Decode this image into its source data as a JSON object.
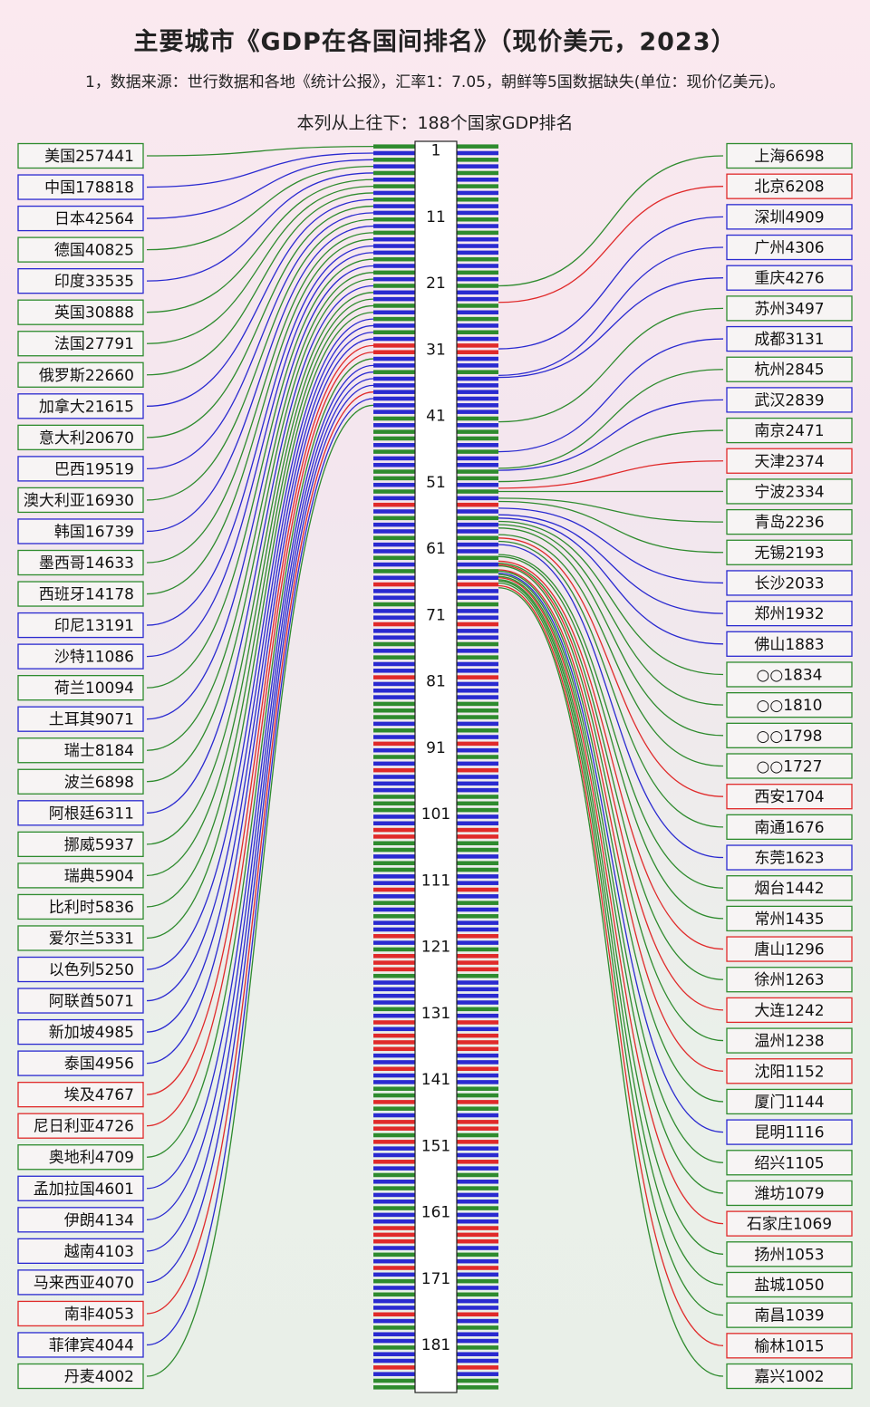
{
  "title": "主要城市《GDP在各国间排名》（现价美元，2023）",
  "note": "1，数据来源：世行数据和各地《统计公报》，汇率1：7.05，朝鲜等5国数据缺失(单位：现价亿美元)。",
  "axis_caption": "本列从上往下：188个国家GDP排名",
  "total_ranks": 188,
  "colors": {
    "green": "#2e8b2e",
    "blue": "#2a2ad0",
    "red": "#e02a2a"
  },
  "stripe_pattern": "gbgbgbgbgbbgbgbbbgbgbgbbgbgbgbrrbbgbbbbbbgbggbgbbggbgbrbgbbgbbgbgbrbbgbbrbbgbgbbrbbbgggbgbrbgbrbbbgggbbrrggbggbbrbgbgbbrbgrrrgbbbbgbrbrrrbbrbbggrgbrrgrbbrbgbgbbgbbrrrbgbrbgbgbbrbgbbgbbrbggggggggg",
  "rank_ticks": [
    1,
    11,
    21,
    31,
    41,
    51,
    61,
    71,
    81,
    91,
    101,
    111,
    121,
    131,
    141,
    151,
    161,
    171,
    181
  ],
  "countries": [
    {
      "label": "美国257441",
      "rank": 1,
      "color": "green"
    },
    {
      "label": "中国178818",
      "rank": 2,
      "color": "blue"
    },
    {
      "label": "日本42564",
      "rank": 3,
      "color": "blue"
    },
    {
      "label": "德国40825",
      "rank": 4,
      "color": "green"
    },
    {
      "label": "印度33535",
      "rank": 5,
      "color": "blue"
    },
    {
      "label": "英国30888",
      "rank": 6,
      "color": "green"
    },
    {
      "label": "法国27791",
      "rank": 7,
      "color": "green"
    },
    {
      "label": "俄罗斯22660",
      "rank": 8,
      "color": "green"
    },
    {
      "label": "加拿大21615",
      "rank": 9,
      "color": "blue"
    },
    {
      "label": "意大利20670",
      "rank": 10,
      "color": "green"
    },
    {
      "label": "巴西19519",
      "rank": 11,
      "color": "blue"
    },
    {
      "label": "澳大利亚16930",
      "rank": 12,
      "color": "green"
    },
    {
      "label": "韩国16739",
      "rank": 13,
      "color": "blue"
    },
    {
      "label": "墨西哥14633",
      "rank": 14,
      "color": "green"
    },
    {
      "label": "西班牙14178",
      "rank": 15,
      "color": "green"
    },
    {
      "label": "印尼13191",
      "rank": 16,
      "color": "blue"
    },
    {
      "label": "沙特11086",
      "rank": 17,
      "color": "blue"
    },
    {
      "label": "荷兰10094",
      "rank": 18,
      "color": "green"
    },
    {
      "label": "土耳其9071",
      "rank": 19,
      "color": "blue"
    },
    {
      "label": "瑞士8184",
      "rank": 20,
      "color": "green"
    },
    {
      "label": "波兰6898",
      "rank": 21,
      "color": "green"
    },
    {
      "label": "阿根廷6311",
      "rank": 22,
      "color": "blue"
    },
    {
      "label": "挪威5937",
      "rank": 23,
      "color": "green"
    },
    {
      "label": "瑞典5904",
      "rank": 24,
      "color": "green"
    },
    {
      "label": "比利时5836",
      "rank": 25,
      "color": "green"
    },
    {
      "label": "爱尔兰5331",
      "rank": 26,
      "color": "green"
    },
    {
      "label": "以色列5250",
      "rank": 27,
      "color": "blue"
    },
    {
      "label": "阿联酋5071",
      "rank": 28,
      "color": "blue"
    },
    {
      "label": "新加坡4985",
      "rank": 29,
      "color": "blue"
    },
    {
      "label": "泰国4956",
      "rank": 30,
      "color": "blue"
    },
    {
      "label": "埃及4767",
      "rank": 31,
      "color": "red"
    },
    {
      "label": "尼日利亚4726",
      "rank": 32,
      "color": "red"
    },
    {
      "label": "奥地利4709",
      "rank": 33,
      "color": "green"
    },
    {
      "label": "孟加拉国4601",
      "rank": 34,
      "color": "blue"
    },
    {
      "label": "伊朗4134",
      "rank": 35,
      "color": "blue"
    },
    {
      "label": "越南4103",
      "rank": 36,
      "color": "blue"
    },
    {
      "label": "马来西亚4070",
      "rank": 37,
      "color": "blue"
    },
    {
      "label": "南非4053",
      "rank": 38,
      "color": "red"
    },
    {
      "label": "菲律宾4044",
      "rank": 39,
      "color": "blue"
    },
    {
      "label": "丹麦4002",
      "rank": 40,
      "color": "green"
    }
  ],
  "cities": [
    {
      "label": "上海6698",
      "rank": 22.0,
      "color": "green"
    },
    {
      "label": "北京6208",
      "rank": 24.5,
      "color": "red"
    },
    {
      "label": "深圳4909",
      "rank": 31.5,
      "color": "blue"
    },
    {
      "label": "广州4306",
      "rank": 35.5,
      "color": "blue"
    },
    {
      "label": "重庆4276",
      "rank": 35.8,
      "color": "blue"
    },
    {
      "label": "苏州3497",
      "rank": 42.5,
      "color": "green"
    },
    {
      "label": "成都3131",
      "rank": 47.0,
      "color": "blue"
    },
    {
      "label": "杭州2845",
      "rank": 49.5,
      "color": "green"
    },
    {
      "label": "武汉2839",
      "rank": 49.8,
      "color": "blue"
    },
    {
      "label": "南京2471",
      "rank": 51.5,
      "color": "green"
    },
    {
      "label": "天津2374",
      "rank": 52.5,
      "color": "red"
    },
    {
      "label": "宁波2334",
      "rank": 53.0,
      "color": "green"
    },
    {
      "label": "青岛2236",
      "rank": 54.0,
      "color": "green"
    },
    {
      "label": "无锡2193",
      "rank": 54.5,
      "color": "green"
    },
    {
      "label": "长沙2033",
      "rank": 55.5,
      "color": "blue"
    },
    {
      "label": "郑州1932",
      "rank": 56.5,
      "color": "blue"
    },
    {
      "label": "佛山1883",
      "rank": 57.0,
      "color": "blue"
    },
    {
      "label": "○○1834",
      "rank": 57.5,
      "color": "green"
    },
    {
      "label": "○○1810",
      "rank": 58.0,
      "color": "green"
    },
    {
      "label": "○○1798",
      "rank": 58.5,
      "color": "green"
    },
    {
      "label": "○○1727",
      "rank": 59.5,
      "color": "green"
    },
    {
      "label": "西安1704",
      "rank": 60.0,
      "color": "red"
    },
    {
      "label": "南通1676",
      "rank": 60.5,
      "color": "green"
    },
    {
      "label": "东莞1623",
      "rank": 61.0,
      "color": "blue"
    },
    {
      "label": "烟台1442",
      "rank": 62.5,
      "color": "green"
    },
    {
      "label": "常州1435",
      "rank": 62.8,
      "color": "green"
    },
    {
      "label": "唐山1296",
      "rank": 63.5,
      "color": "red"
    },
    {
      "label": "徐州1263",
      "rank": 63.8,
      "color": "green"
    },
    {
      "label": "大连1242",
      "rank": 64.0,
      "color": "red"
    },
    {
      "label": "温州1238",
      "rank": 64.2,
      "color": "green"
    },
    {
      "label": "沈阳1152",
      "rank": 64.8,
      "color": "red"
    },
    {
      "label": "厦门1144",
      "rank": 65.0,
      "color": "green"
    },
    {
      "label": "昆明1116",
      "rank": 65.3,
      "color": "blue"
    },
    {
      "label": "绍兴1105",
      "rank": 65.5,
      "color": "green"
    },
    {
      "label": "潍坊1079",
      "rank": 65.8,
      "color": "green"
    },
    {
      "label": "石家庄1069",
      "rank": 66.0,
      "color": "red"
    },
    {
      "label": "扬州1053",
      "rank": 66.3,
      "color": "green"
    },
    {
      "label": "盐城1050",
      "rank": 66.5,
      "color": "green"
    },
    {
      "label": "南昌1039",
      "rank": 66.8,
      "color": "green"
    },
    {
      "label": "榆林1015",
      "rank": 67.2,
      "color": "red"
    },
    {
      "label": "嘉兴1002",
      "rank": 67.5,
      "color": "green"
    }
  ]
}
